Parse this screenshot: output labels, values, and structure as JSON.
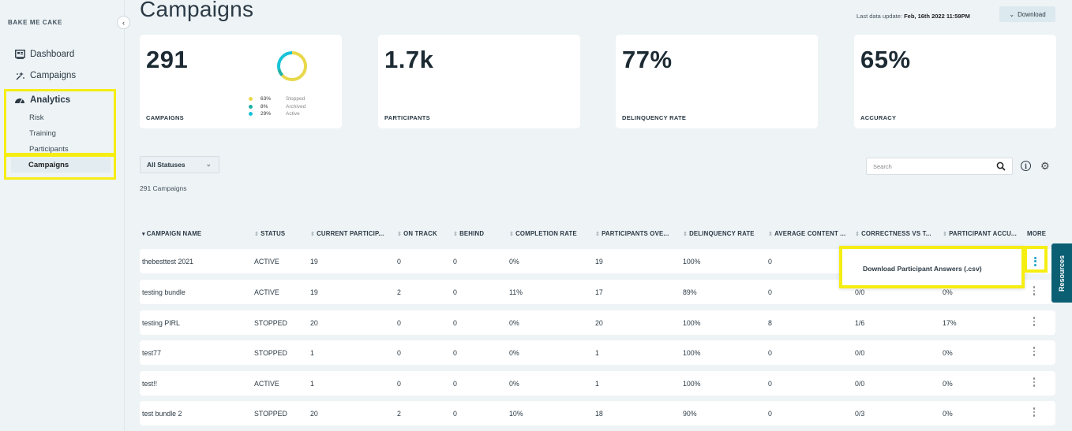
{
  "brand": "BAKE ME CAKE",
  "sidebar": {
    "collapse_glyph": "‹",
    "items": [
      {
        "label": "Dashboard",
        "icon": "dashboard-icon"
      },
      {
        "label": "Campaigns",
        "icon": "campaigns-icon"
      },
      {
        "label": "Analytics",
        "icon": "analytics-icon"
      }
    ],
    "sub_items": [
      "Risk",
      "Training",
      "Participants",
      "Campaigns"
    ]
  },
  "header": {
    "title": "Campaigns",
    "last_update_label": "Last data update:",
    "last_update_value": "Feb, 16th 2022 11:59PM",
    "download_label": "Download"
  },
  "stats": [
    {
      "value": "291",
      "label": "CAMPAIGNS"
    },
    {
      "value": "1.7k",
      "label": "PARTICIPANTS"
    },
    {
      "value": "77%",
      "label": "DELINQUENCY RATE"
    },
    {
      "value": "65%",
      "label": "ACCURACY"
    }
  ],
  "donut": {
    "segments": [
      {
        "pct": "63%",
        "name": "Stopped",
        "value": 63,
        "color": "#e8d84a"
      },
      {
        "pct": "8%",
        "name": "Archived",
        "value": 8,
        "color": "#1fb1a5"
      },
      {
        "pct": "29%",
        "name": "Active",
        "value": 29,
        "color": "#19c3d8"
      }
    ]
  },
  "filters": {
    "status_value": "All Statuses",
    "count_text": "291 Campaigns",
    "search_placeholder": "Search"
  },
  "table": {
    "columns": [
      "CAMPAIGN NAME",
      "STATUS",
      "CURRENT PARTICIP...",
      "ON TRACK",
      "BEHIND",
      "COMPLETION RATE",
      "PARTICIPANTS OVE...",
      "DELINQUENCY RATE",
      "AVERAGE CONTENT ...",
      "CORRECTNESS VS T...",
      "PARTICIPANT ACCU...",
      "MORE"
    ],
    "rows": [
      [
        "thebesttest 2021",
        "ACTIVE",
        "19",
        "0",
        "0",
        "0%",
        "19",
        "100%",
        "0",
        "",
        ""
      ],
      [
        "testing bundle",
        "ACTIVE",
        "19",
        "2",
        "0",
        "11%",
        "17",
        "89%",
        "0",
        "0/0",
        "0%"
      ],
      [
        "testing PIRL",
        "STOPPED",
        "20",
        "0",
        "0",
        "0%",
        "20",
        "100%",
        "8",
        "1/6",
        "17%"
      ],
      [
        "test77",
        "STOPPED",
        "1",
        "0",
        "0",
        "0%",
        "1",
        "100%",
        "0",
        "0/0",
        "0%"
      ],
      [
        "test!!",
        "ACTIVE",
        "1",
        "0",
        "0",
        "0%",
        "1",
        "100%",
        "0",
        "0/0",
        "0%"
      ],
      [
        "test bundle 2",
        "STOPPED",
        "20",
        "2",
        "0",
        "10%",
        "18",
        "90%",
        "0",
        "0/3",
        "0%"
      ]
    ]
  },
  "popup": {
    "label": "Download Participant Answers (.csv)"
  },
  "resources_label": "Resources"
}
